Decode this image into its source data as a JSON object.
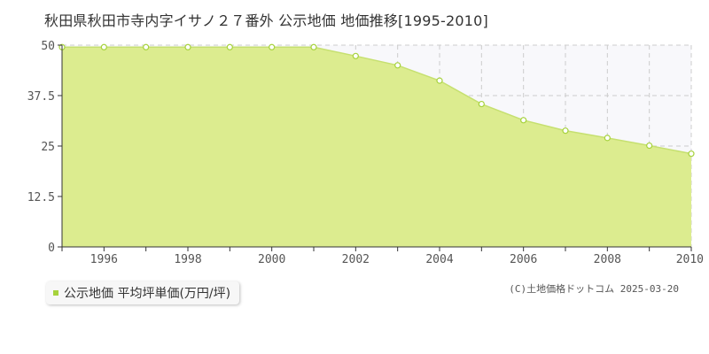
{
  "chart_data": {
    "type": "area",
    "title": "秋田県秋田市寺内字イサノ２７番外 公示地価 地価推移[1995-2010]",
    "x": [
      1995,
      1996,
      1997,
      1998,
      1999,
      2000,
      2001,
      2002,
      2003,
      2004,
      2005,
      2006,
      2007,
      2008,
      2009,
      2010
    ],
    "series": [
      {
        "name": "公示地価 平均坪単価(万円/坪)",
        "values": [
          49.5,
          49.5,
          49.5,
          49.5,
          49.5,
          49.5,
          49.5,
          47.3,
          45.0,
          41.2,
          35.4,
          31.4,
          28.8,
          27.0,
          25.1,
          23.1
        ]
      }
    ],
    "xlim": [
      1995,
      2010
    ],
    "ylim": [
      0,
      50
    ],
    "x_ticks": [
      "1996",
      "1998",
      "2000",
      "2002",
      "2004",
      "2006",
      "2008",
      "2010"
    ],
    "y_ticks": [
      "0",
      "12.5",
      "25",
      "37.5",
      "50"
    ],
    "grid": true,
    "legend_position": "bottom-left",
    "colors": {
      "fill": "#dcec8f",
      "line": "#c6e070",
      "marker": "#a6d23c",
      "plot_bg": "#f8f8fb",
      "grid": "#cccccc"
    }
  },
  "legend": {
    "label": "公示地価 平均坪単価(万円/坪)"
  },
  "copyright": "(C)土地価格ドットコム 2025-03-20"
}
